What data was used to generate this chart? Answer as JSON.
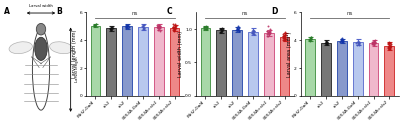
{
  "panel_B": {
    "ylabel": "Larval length (mm)",
    "ylim": [
      0,
      6
    ],
    "yticks": [
      0,
      2,
      4,
      6
    ],
    "ns_text": "ns",
    "categories": [
      "Mef2-Gal4",
      "sls1",
      "sls2",
      "5053A-Gal4",
      "5053A>sls1",
      "5053A>sls2"
    ],
    "bar_fill_colors": [
      "#a8d8a8",
      "#777777",
      "#8899cc",
      "#b8c8ee",
      "#f0b8cc",
      "#ee8888"
    ],
    "bar_edge_colors": [
      "#3a8c3a",
      "#222222",
      "#2244aa",
      "#5566cc",
      "#cc4477",
      "#cc2222"
    ],
    "dot_colors": [
      "#2a7a2a",
      "#111111",
      "#1133aa",
      "#4455bb",
      "#bb3366",
      "#bb1111"
    ],
    "means": [
      5.05,
      4.85,
      5.0,
      4.95,
      4.95,
      4.88
    ],
    "errors": [
      0.14,
      0.16,
      0.18,
      0.22,
      0.2,
      0.22
    ],
    "dot_counts": [
      10,
      10,
      10,
      10,
      18,
      18
    ]
  },
  "panel_C": {
    "ylabel": "Larval width (mm)",
    "ylim": [
      0.0,
      1.25
    ],
    "yticks": [
      0.0,
      0.5,
      1.0
    ],
    "ns_text": "ns",
    "categories": [
      "Mef2-Gal4",
      "sls1",
      "sls2",
      "5053A-Gal4",
      "5053A>sls1",
      "5053A>sls2"
    ],
    "bar_fill_colors": [
      "#a8d8a8",
      "#777777",
      "#8899cc",
      "#b8c8ee",
      "#f0b8cc",
      "#ee8888"
    ],
    "bar_edge_colors": [
      "#3a8c3a",
      "#222222",
      "#2244aa",
      "#5566cc",
      "#cc4477",
      "#cc2222"
    ],
    "dot_colors": [
      "#2a7a2a",
      "#111111",
      "#1133aa",
      "#4455bb",
      "#bb3366",
      "#bb1111"
    ],
    "means": [
      1.02,
      0.98,
      0.99,
      0.96,
      0.94,
      0.88
    ],
    "errors": [
      0.03,
      0.04,
      0.04,
      0.05,
      0.05,
      0.06
    ],
    "dot_counts": [
      10,
      10,
      10,
      10,
      20,
      20
    ]
  },
  "panel_D": {
    "ylabel": "Larval area (mm²)",
    "ylim": [
      0,
      6
    ],
    "yticks": [
      0,
      2,
      4,
      6
    ],
    "ns_text": "ns",
    "categories": [
      "Mef2-Gal4",
      "sls1",
      "sls2",
      "5053A-Gal4",
      "5053A>sls1",
      "5053A>sls2"
    ],
    "bar_fill_colors": [
      "#a8d8a8",
      "#777777",
      "#8899cc",
      "#b8c8ee",
      "#f0b8cc",
      "#ee8888"
    ],
    "bar_edge_colors": [
      "#3a8c3a",
      "#222222",
      "#2244aa",
      "#5566cc",
      "#cc4477",
      "#cc2222"
    ],
    "dot_colors": [
      "#2a7a2a",
      "#111111",
      "#1133aa",
      "#4455bb",
      "#bb3366",
      "#bb1111"
    ],
    "means": [
      4.1,
      3.8,
      3.95,
      3.85,
      3.8,
      3.6
    ],
    "errors": [
      0.13,
      0.18,
      0.16,
      0.22,
      0.22,
      0.28
    ],
    "dot_counts": [
      10,
      10,
      10,
      10,
      20,
      20
    ]
  }
}
